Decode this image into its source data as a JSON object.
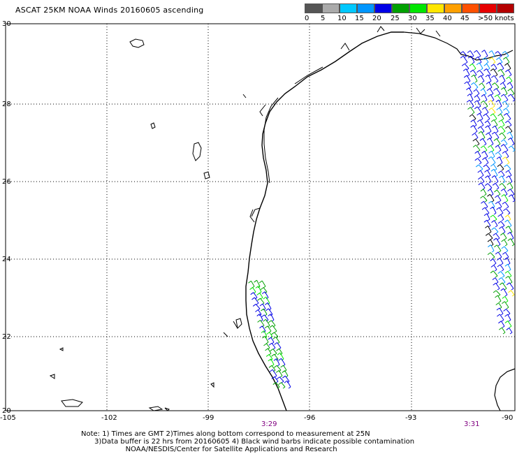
{
  "title": "ASCAT 25KM NOAA Winds 20160605 ascending",
  "scale": {
    "colors": [
      "#555555",
      "#aaaaaa",
      "#00c8ff",
      "#0096ff",
      "#0000e6",
      "#00a000",
      "#00e600",
      "#ffe600",
      "#ffa000",
      "#ff5000",
      "#e60000",
      "#b40000",
      "#805000",
      "#ff00ff",
      "#c800ff",
      "#5000b4"
    ],
    "labels": [
      "0",
      "5",
      "10",
      "15",
      "20",
      "25",
      "30",
      "35",
      "40",
      "45",
      ">50 knots"
    ]
  },
  "map": {
    "lat_labels": [
      "30",
      "28",
      "26",
      "24",
      "22",
      "20"
    ],
    "lon_labels": [
      "-105",
      "-102",
      "-99",
      "-96",
      "-93",
      "-90"
    ],
    "times": [
      "3:29",
      "3:31"
    ]
  },
  "notes": [
    "Note: 1) Times are GMT 2)Times along bottom correspond to measurement at 25N",
    "      3)Data buffer is 22 hrs from 20160605 4) Black wind barbs indicate possible contamination",
    "                    NOAA/NESDIS/Center for Satellite Applications and Research"
  ]
}
